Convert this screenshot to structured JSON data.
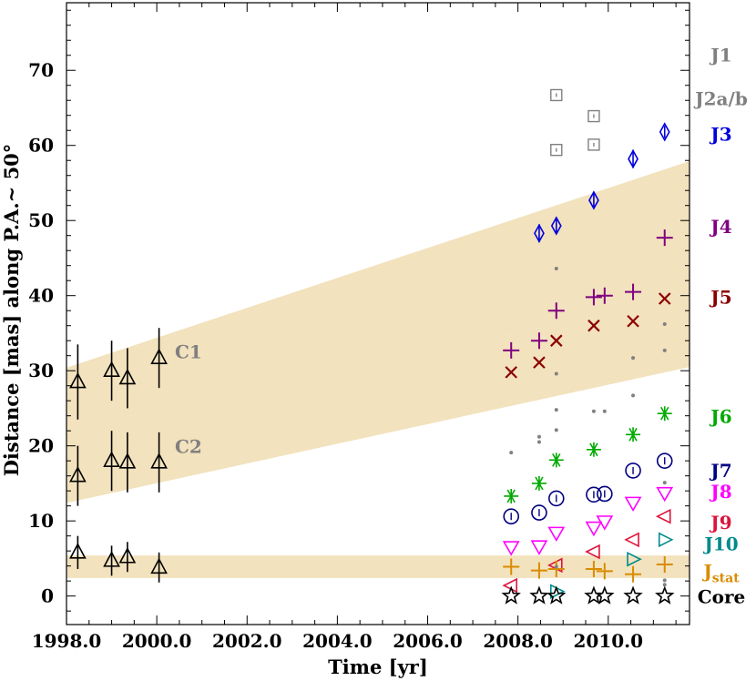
{
  "chart_data": {
    "type": "scatter",
    "title": "",
    "xlabel": "Time [yr]",
    "ylabel": "Distance [mas] along P.A.~ 50°",
    "xlim": [
      1998.0,
      2011.8
    ],
    "ylim": [
      -3.8,
      79
    ],
    "x_ticks": [
      1998.0,
      2000.0,
      2002.0,
      2004.0,
      2006.0,
      2008.0,
      2010.0
    ],
    "x_tick_labels": [
      "1998.0",
      "2000.0",
      "2002.0",
      "2004.0",
      "2006.0",
      "2008.0",
      "2010.0"
    ],
    "y_ticks": [
      0,
      10,
      20,
      30,
      40,
      50,
      60,
      70
    ],
    "y_tick_labels": [
      "0",
      "10",
      "20",
      "30",
      "40",
      "50",
      "60",
      "70"
    ],
    "bands": [
      {
        "name": "upper-band",
        "color": "#f2e2bd",
        "x": [
          1998.0,
          2011.8
        ],
        "lower": [
          22.0,
          40.0
        ],
        "upper": [
          30.4,
          57.9
        ]
      },
      {
        "name": "middle-band",
        "color": "#f2e2bd",
        "x": [
          1998.0,
          2011.8
        ],
        "lower": [
          12.4,
          30.5
        ],
        "upper": [
          22.0,
          40.0
        ]
      },
      {
        "name": "core-band",
        "color": "#f2e2bd",
        "x": [
          1998.0,
          2011.8
        ],
        "lower": [
          2.4,
          2.4
        ],
        "upper": [
          5.4,
          5.4
        ]
      }
    ],
    "series": [
      {
        "name": "C1",
        "marker": "triangle-up",
        "color": "#000000",
        "x": [
          1998.25,
          1999.0,
          1999.35,
          2000.05
        ],
        "y": [
          28.5,
          30.0,
          29.0,
          31.7
        ],
        "yerr": [
          5.0,
          4.0,
          4.0,
          4.0
        ]
      },
      {
        "name": "C2",
        "marker": "triangle-up",
        "color": "#000000",
        "x": [
          1998.25,
          1999.0,
          1999.35,
          2000.05
        ],
        "y": [
          16.0,
          18.0,
          17.8,
          17.8
        ],
        "yerr": [
          4.0,
          4.0,
          4.0,
          4.0
        ]
      },
      {
        "name": "C-core",
        "marker": "triangle-up",
        "color": "#000000",
        "x": [
          1998.25,
          1999.0,
          1999.35,
          2000.05
        ],
        "y": [
          5.8,
          4.7,
          5.2,
          3.8
        ],
        "yerr": [
          2.2,
          2.0,
          2.0,
          2.0
        ]
      },
      {
        "name": "J2a/b",
        "marker": "square-dot",
        "color": "#808080",
        "x": [
          2008.85,
          2008.85,
          2009.68,
          2009.68
        ],
        "y": [
          66.7,
          59.4,
          63.9,
          60.1
        ]
      },
      {
        "name": "J3",
        "marker": "thin-diamond",
        "color": "#0000dd",
        "x": [
          2008.47,
          2008.85,
          2009.68,
          2010.55,
          2011.25
        ],
        "y": [
          48.3,
          49.3,
          52.7,
          58.2,
          61.8
        ],
        "yerr": [
          1.2,
          1.0,
          1.0,
          1.2,
          0.8
        ]
      },
      {
        "name": "J4",
        "marker": "plus",
        "color": "#800080",
        "x": [
          2007.85,
          2008.47,
          2008.85,
          2009.68,
          2009.92,
          2010.55,
          2011.25
        ],
        "y": [
          32.7,
          34.0,
          38.0,
          39.8,
          40.0,
          40.5,
          47.7
        ]
      },
      {
        "name": "J5",
        "marker": "x",
        "color": "#8b0000",
        "x": [
          2007.85,
          2008.47,
          2008.85,
          2009.68,
          2010.55,
          2011.25
        ],
        "y": [
          29.8,
          31.1,
          34.0,
          36.0,
          36.6,
          39.6
        ]
      },
      {
        "name": "J6",
        "marker": "star6",
        "color": "#00aa00",
        "x": [
          2007.85,
          2008.47,
          2008.85,
          2009.68,
          2010.55,
          2011.25
        ],
        "y": [
          13.3,
          15.0,
          18.1,
          19.5,
          21.5,
          24.3
        ]
      },
      {
        "name": "J7",
        "marker": "circle-bar",
        "color": "#000080",
        "x": [
          2007.85,
          2008.47,
          2008.85,
          2009.68,
          2009.92,
          2010.55,
          2011.25
        ],
        "y": [
          10.6,
          11.1,
          13.0,
          13.5,
          13.6,
          16.7,
          18.0
        ]
      },
      {
        "name": "J8",
        "marker": "triangle-down",
        "color": "#ff00ff",
        "x": [
          2007.85,
          2008.47,
          2008.85,
          2009.68,
          2009.92,
          2010.55,
          2011.25
        ],
        "y": [
          6.5,
          6.6,
          8.4,
          9.1,
          9.9,
          12.4,
          13.7
        ]
      },
      {
        "name": "J9",
        "marker": "triangle-left",
        "color": "#dc143c",
        "x": [
          2007.85,
          2008.85,
          2009.68,
          2010.55,
          2011.25
        ],
        "y": [
          1.4,
          4.1,
          5.9,
          7.5,
          10.6
        ]
      },
      {
        "name": "J10",
        "marker": "triangle-right",
        "color": "#008b8b",
        "x": [
          2008.85,
          2010.55,
          2011.25
        ],
        "y": [
          0.6,
          4.9,
          7.5
        ]
      },
      {
        "name": "Jstat",
        "marker": "plus",
        "color": "#d98c00",
        "x": [
          2007.85,
          2008.47,
          2008.85,
          2009.68,
          2009.92,
          2010.55,
          2011.25
        ],
        "y": [
          3.9,
          3.4,
          3.6,
          3.6,
          3.3,
          2.9,
          4.2
        ]
      },
      {
        "name": "Core",
        "marker": "star5",
        "color": "#000000",
        "x": [
          2007.85,
          2008.47,
          2008.85,
          2009.68,
          2009.92,
          2010.55,
          2011.25
        ],
        "y": [
          0,
          0,
          0,
          0,
          0,
          0,
          0
        ]
      },
      {
        "name": "grey-dots",
        "marker": "dot",
        "color": "#808080",
        "x": [
          2007.85,
          2008.47,
          2008.47,
          2008.85,
          2008.85,
          2008.85,
          2008.85,
          2008.85,
          2009.68,
          2009.92,
          2010.55,
          2010.55,
          2011.25,
          2011.25,
          2011.25,
          2011.25,
          2011.25
        ],
        "y": [
          19.1,
          20.5,
          21.2,
          43.6,
          29.6,
          24.8,
          22.1,
          3.9,
          24.6,
          24.6,
          31.7,
          26.7,
          36.2,
          32.7,
          1.5,
          2.1,
          15.1
        ]
      }
    ],
    "annotations": [
      {
        "text": "C1",
        "x": 2000.4,
        "y": 32.5,
        "color": "#808080"
      },
      {
        "text": "C2",
        "x": 2000.4,
        "y": 19.9,
        "color": "#808080"
      }
    ],
    "legend": {
      "placement": "right",
      "entries": [
        {
          "label": "J1",
          "color": "#808080",
          "y": 72.0
        },
        {
          "label": "J2a/b",
          "color": "#808080",
          "y": 66.2
        },
        {
          "label": "J3",
          "color": "#0000dd",
          "y": 61.5
        },
        {
          "label": "J4",
          "color": "#800080",
          "y": 49.2
        },
        {
          "label": "J5",
          "color": "#8b0000",
          "y": 39.8
        },
        {
          "label": "J6",
          "color": "#00aa00",
          "y": 23.9
        },
        {
          "label": "J7",
          "color": "#000080",
          "y": 16.7
        },
        {
          "label": "J8",
          "color": "#ff00ff",
          "y": 13.9
        },
        {
          "label": "J9",
          "color": "#dc143c",
          "y": 9.8
        },
        {
          "label": "J10",
          "color": "#008b8b",
          "y": 6.9
        },
        {
          "label": "J",
          "sub": "stat",
          "color": "#d98c00",
          "y": 3.3
        },
        {
          "label": "Core",
          "color": "#000000",
          "y": -0.1
        }
      ]
    }
  }
}
